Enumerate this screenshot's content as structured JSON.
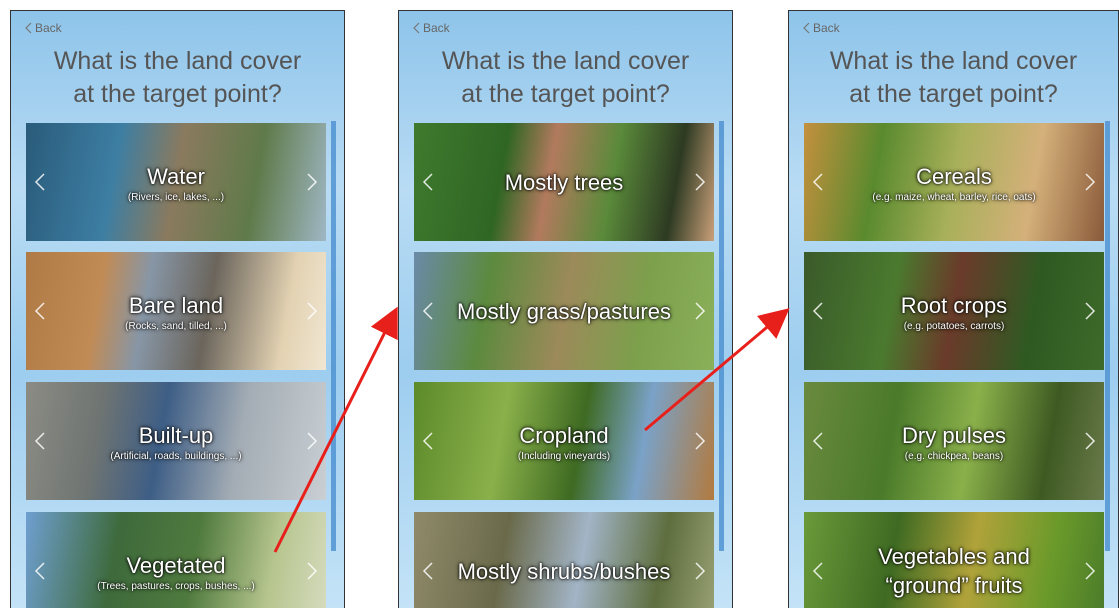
{
  "screens": [
    {
      "back": "Back",
      "title": "What is the land cover\nat the target point?",
      "options": [
        {
          "label": "Water",
          "sublabel": "(Rivers, ice, lakes, ...)"
        },
        {
          "label": "Bare land",
          "sublabel": "(Rocks, sand, tilled, ...)"
        },
        {
          "label": "Built-up",
          "sublabel": "(Artificial, roads, buildings, ...)"
        },
        {
          "label": "Vegetated",
          "sublabel": "(Trees, pastures, crops, bushes, ...)"
        }
      ]
    },
    {
      "back": "Back",
      "title": "What is the land cover\nat the target point?",
      "options": [
        {
          "label": "Mostly trees"
        },
        {
          "label": "Mostly grass/pastures"
        },
        {
          "label": "Cropland",
          "sublabel": "(Including vineyards)"
        },
        {
          "label": "Mostly shrubs/bushes"
        }
      ]
    },
    {
      "back": "Back",
      "title": "What is the land cover\nat the target point?",
      "options": [
        {
          "label": "Cereals",
          "sublabel": "(e.g. maize, wheat, barley, rice, oats)"
        },
        {
          "label": "Root crops",
          "sublabel": "(e.g. potatoes, carrots)"
        },
        {
          "label": "Dry pulses",
          "sublabel": "(e.g. chickpea, beans)"
        },
        {
          "label": "Vegetables and\n“ground” fruits"
        }
      ]
    }
  ]
}
